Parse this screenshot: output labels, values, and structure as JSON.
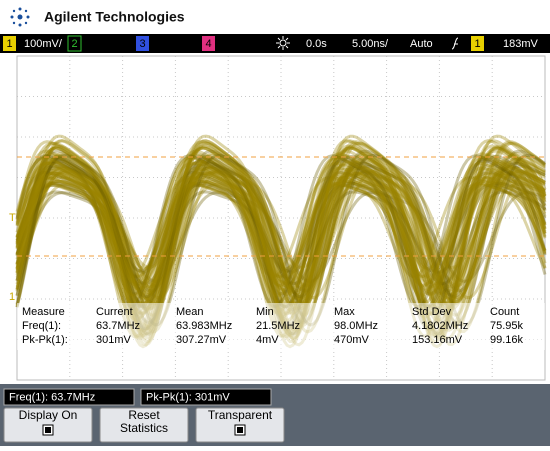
{
  "header": {
    "brand": "Agilent Technologies"
  },
  "status_bar": {
    "ch1": "1",
    "ch1_scale": "100mV/",
    "ch2": "2",
    "ch3": "3",
    "ch4": "4",
    "delay": "0.0s",
    "timebase": "5.00ns/",
    "mode": "Auto",
    "trig_source": "1",
    "trig_level": "183mV"
  },
  "markers": {
    "trigger": "T",
    "channel": "1"
  },
  "measurements": {
    "headers": [
      "Measure",
      "Current",
      "Mean",
      "Min",
      "Max",
      "Std Dev",
      "Count"
    ],
    "rows": [
      [
        "Freq(1):",
        "63.7MHz",
        "63.983MHz",
        "21.5MHz",
        "98.0MHz",
        "4.1802MHz",
        "75.95k"
      ],
      [
        "Pk-Pk(1):",
        "301mV",
        "307.27mV",
        "4mV",
        "470mV",
        "153.16mV",
        "99.16k"
      ]
    ]
  },
  "bottom_bar": [
    "Freq(1): 63.7MHz",
    "Pk-Pk(1): 301mV"
  ],
  "softkeys": [
    [
      "Display On"
    ],
    [
      "Reset",
      "Statistics"
    ],
    [
      "Transparent"
    ]
  ]
}
